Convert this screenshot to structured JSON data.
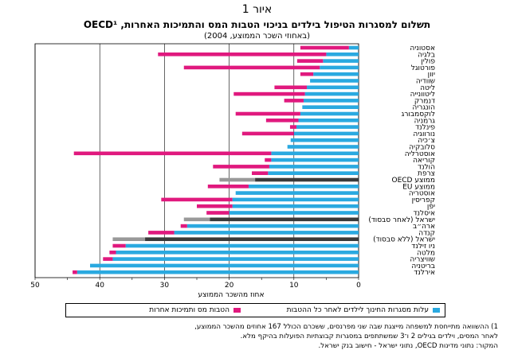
{
  "figure_label": "איור 1",
  "title": "תשלום למסגרות הטיפול בילדים בניכוי הטבות המס והתמיכות האחרות, OECD¹",
  "subtitle": "(באחוזי השכר הממוצע, 2004)",
  "colors": {
    "net_childcare": "#2aa9e0",
    "benefits": "#e0197e",
    "israel_net": "#3a3a3a",
    "israel_benefits": "#999999",
    "grid": "#000000"
  },
  "legend": {
    "net_childcare": "עלות מסגרות החינוך לילדים לאחר כל ההטבות",
    "benefits": "הטבות מס ותמיכות אחרות"
  },
  "notes": [
    "1) ההשוואה מתייחסת למשפחה מייצגת שבה שני מפרנסים, ששכרם הכולל 167 אחוזים מהשכר הממוצע,",
    "לאחר המסים, וילדים בגילים 2 ו־3 שמשתתפים במסגרות קבוצתיות הפועלות בהיקף מלא.",
    "המקור: נתוני מדינות OECD, נתוני ישראל - חישוב בנק ישראל."
  ],
  "chart_data": {
    "type": "bar",
    "orientation": "horizontal-stacked",
    "x_direction": "right-to-left",
    "xlabel": "אחוז מהשכר הממוצע",
    "xlim": [
      0,
      50
    ],
    "xticks": [
      0,
      5,
      10,
      15,
      20,
      25,
      30,
      35,
      40,
      45,
      50
    ],
    "categories": [
      "אסטוניה",
      "בלגיה",
      "פולין",
      "פורטוגל",
      "יוון",
      "שוודיה",
      "ליטה",
      "ליטוונייה",
      "דנמרק",
      "הונגריה",
      "לוקסמבורג",
      "גרמניה",
      "פינלנד",
      "נורווגיה",
      "צ׳כיה",
      "סלובקיה",
      "אוסטרליה",
      "קוריאה",
      "הולנד",
      "צרפת",
      "ממוצע OECD",
      "ממוצע EU",
      "אוסטריה",
      "קפריסין",
      "יפן",
      "איסלנד",
      "ישראל (לאחר סבסוד)",
      "ארה״ב",
      "קנדה",
      "ישראל (ללא סבסוד)",
      "ניו זילנד",
      "מלטה",
      "שוויצריה",
      "בריטניה",
      "אירלנד"
    ],
    "series": [
      {
        "name": "עלות מסגרות החינוך לילדים לאחר כל ההטבות",
        "values": [
          1.5,
          5,
          5.5,
          6,
          7,
          7.5,
          8,
          8.3,
          8.5,
          8.7,
          9,
          9.3,
          9.6,
          10,
          10.5,
          11,
          13.5,
          13.5,
          13.8,
          14,
          16,
          17,
          19,
          19.5,
          19.5,
          20,
          23,
          26.5,
          28.5,
          33,
          36,
          37.5,
          38,
          41.5,
          43.5
        ]
      },
      {
        "name": "הטבות מס ותמיכות אחרות",
        "values": [
          7.5,
          26,
          4,
          21,
          2,
          0,
          5,
          11,
          3,
          0,
          10,
          5,
          1,
          8,
          0,
          0,
          30.5,
          1,
          8.7,
          2.5,
          5.5,
          6.3,
          0,
          11,
          5.5,
          3.5,
          4,
          1,
          4,
          5,
          2,
          1,
          1.5,
          0,
          0.7
        ]
      }
    ],
    "highlight_categories": [
      "ממוצע OECD",
      "ישראל (לאחר סבסוד)",
      "ישראל (ללא סבסוד)"
    ],
    "grid": "vertical"
  }
}
